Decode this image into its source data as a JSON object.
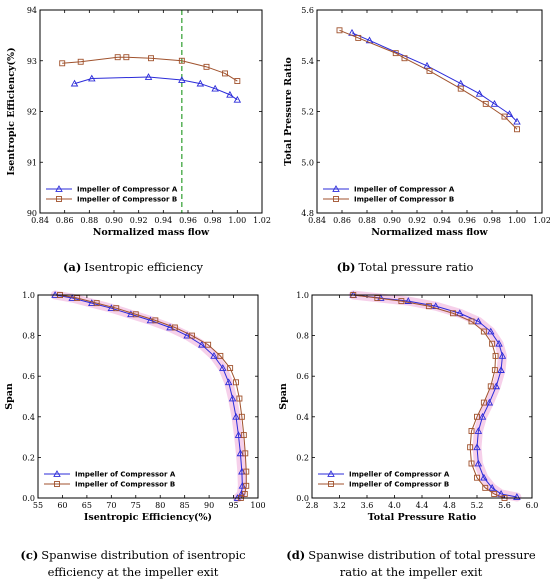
{
  "colors": {
    "series_a": "#2b2bd9",
    "series_b": "#a0522d",
    "marker_line": "#2e9e2e",
    "band": "#f5c8e6"
  },
  "captions": [
    {
      "label": "(a)",
      "text": "Isentropic efficiency"
    },
    {
      "label": "(b)",
      "text": "Total pressure ratio"
    },
    {
      "label": "(c)",
      "text_line1": "Spanwise distribution of isentropic",
      "text_line2": "efficiency at the impeller exit"
    },
    {
      "label": "(d)",
      "text_line1": "Spanwise distribution of total pressure",
      "text_line2": "ratio at the impeller exit"
    }
  ],
  "chart_data": [
    {
      "id": "a",
      "type": "line",
      "xlabel": "Normalized mass flow",
      "ylabel": "Isentropic Efficiency(%)",
      "xlim": [
        0.84,
        1.02
      ],
      "ylim": [
        90,
        94
      ],
      "xticks": [
        "0.84",
        "0.86",
        "0.88",
        "0.90",
        "0.92",
        "0.94",
        "0.96",
        "0.98",
        "1.00",
        "1.02"
      ],
      "yticks": [
        "90",
        "91",
        "92",
        "93",
        "94"
      ],
      "reference_vline_x": 0.955,
      "legend": "bottom-left",
      "series": [
        {
          "name": "Impeller of Compressor A",
          "marker": "triangle",
          "x": [
            0.868,
            0.882,
            0.928,
            0.955,
            0.97,
            0.982,
            0.994,
            1.0
          ],
          "y": [
            92.55,
            92.65,
            92.68,
            92.62,
            92.55,
            92.45,
            92.33,
            92.23
          ]
        },
        {
          "name": "Impeller of Compressor B",
          "marker": "square",
          "x": [
            0.858,
            0.873,
            0.903,
            0.91,
            0.93,
            0.955,
            0.975,
            0.99,
            1.0
          ],
          "y": [
            92.95,
            92.98,
            93.07,
            93.07,
            93.05,
            93.0,
            92.88,
            92.75,
            92.6
          ]
        }
      ]
    },
    {
      "id": "b",
      "type": "line",
      "xlabel": "Normalized mass flow",
      "ylabel": "Total Pressure Ratio",
      "xlim": [
        0.84,
        1.02
      ],
      "ylim": [
        4.8,
        5.6
      ],
      "xticks": [
        "0.84",
        "0.86",
        "0.88",
        "0.90",
        "0.92",
        "0.94",
        "0.96",
        "0.98",
        "1.00",
        "1.02"
      ],
      "yticks": [
        "4.8",
        "5.0",
        "5.2",
        "5.4",
        "5.6"
      ],
      "legend": "bottom-left",
      "series": [
        {
          "name": "Impeller of Compressor A",
          "marker": "triangle",
          "x": [
            0.868,
            0.882,
            0.928,
            0.955,
            0.97,
            0.982,
            0.994,
            1.0
          ],
          "y": [
            5.51,
            5.48,
            5.38,
            5.31,
            5.27,
            5.23,
            5.19,
            5.16
          ]
        },
        {
          "name": "Impeller of Compressor B",
          "marker": "square",
          "x": [
            0.858,
            0.873,
            0.903,
            0.91,
            0.93,
            0.955,
            0.975,
            0.99,
            1.0
          ],
          "y": [
            5.52,
            5.49,
            5.43,
            5.41,
            5.36,
            5.29,
            5.23,
            5.18,
            5.13
          ]
        }
      ]
    },
    {
      "id": "c",
      "type": "line",
      "xlabel": "Isentropic Efficiency(%)",
      "ylabel": "Span",
      "xlim": [
        55,
        100
      ],
      "ylim": [
        0,
        1
      ],
      "xticks": [
        "55",
        "60",
        "65",
        "70",
        "75",
        "80",
        "85",
        "90",
        "95",
        "100"
      ],
      "yticks": [
        "0.0",
        "0.2",
        "0.4",
        "0.6",
        "0.8",
        "1.0"
      ],
      "legend": "bottom-left",
      "series": [
        {
          "name": "Impeller of Compressor A",
          "marker": "triangle",
          "x": [
            58.5,
            62,
            66,
            70,
            74,
            78,
            82,
            85.5,
            88.5,
            91,
            92.8,
            94,
            94.8,
            95.5,
            96,
            96.4,
            96.7,
            96.8,
            96.6,
            95.8
          ],
          "y": [
            1.0,
            0.985,
            0.96,
            0.935,
            0.905,
            0.875,
            0.84,
            0.8,
            0.755,
            0.7,
            0.64,
            0.57,
            0.49,
            0.4,
            0.31,
            0.22,
            0.13,
            0.06,
            0.02,
            0.0
          ]
        },
        {
          "name": "Impeller of Compressor B",
          "marker": "square",
          "x": [
            59.5,
            63,
            67,
            71,
            75,
            79,
            83,
            86.5,
            89.8,
            92.3,
            94.3,
            95.5,
            96.2,
            96.7,
            97.1,
            97.4,
            97.6,
            97.6,
            97.3,
            96.5
          ],
          "y": [
            1.0,
            0.985,
            0.96,
            0.935,
            0.905,
            0.875,
            0.84,
            0.8,
            0.755,
            0.7,
            0.64,
            0.57,
            0.49,
            0.4,
            0.31,
            0.22,
            0.13,
            0.06,
            0.02,
            0.0
          ]
        }
      ]
    },
    {
      "id": "d",
      "type": "line",
      "xlabel": "Total Pressure Ratio",
      "ylabel": "Span",
      "xlim": [
        2.8,
        6.0
      ],
      "ylim": [
        0,
        1
      ],
      "xticks": [
        "2.8",
        "3.2",
        "3.6",
        "4.0",
        "4.4",
        "4.8",
        "5.2",
        "5.6",
        "6.0"
      ],
      "yticks": [
        "0.0",
        "0.2",
        "0.4",
        "0.6",
        "0.8",
        "1.0"
      ],
      "legend": "bottom-left",
      "series": [
        {
          "name": "Impeller of Compressor A",
          "marker": "triangle",
          "x": [
            3.4,
            3.8,
            4.2,
            4.6,
            4.95,
            5.22,
            5.4,
            5.52,
            5.57,
            5.55,
            5.48,
            5.38,
            5.28,
            5.22,
            5.2,
            5.22,
            5.3,
            5.42,
            5.55,
            5.78
          ],
          "y": [
            1.0,
            0.985,
            0.97,
            0.945,
            0.91,
            0.87,
            0.82,
            0.76,
            0.7,
            0.63,
            0.55,
            0.47,
            0.4,
            0.33,
            0.25,
            0.17,
            0.1,
            0.05,
            0.02,
            0.005
          ]
        },
        {
          "name": "Impeller of Compressor B",
          "marker": "square",
          "x": [
            3.4,
            3.75,
            4.1,
            4.5,
            4.85,
            5.12,
            5.3,
            5.42,
            5.47,
            5.46,
            5.4,
            5.3,
            5.2,
            5.12,
            5.1,
            5.12,
            5.2,
            5.32,
            5.45,
            5.6
          ],
          "y": [
            1.0,
            0.985,
            0.97,
            0.945,
            0.91,
            0.87,
            0.82,
            0.76,
            0.7,
            0.63,
            0.55,
            0.47,
            0.4,
            0.33,
            0.25,
            0.17,
            0.1,
            0.05,
            0.02,
            0.0
          ]
        }
      ]
    }
  ]
}
